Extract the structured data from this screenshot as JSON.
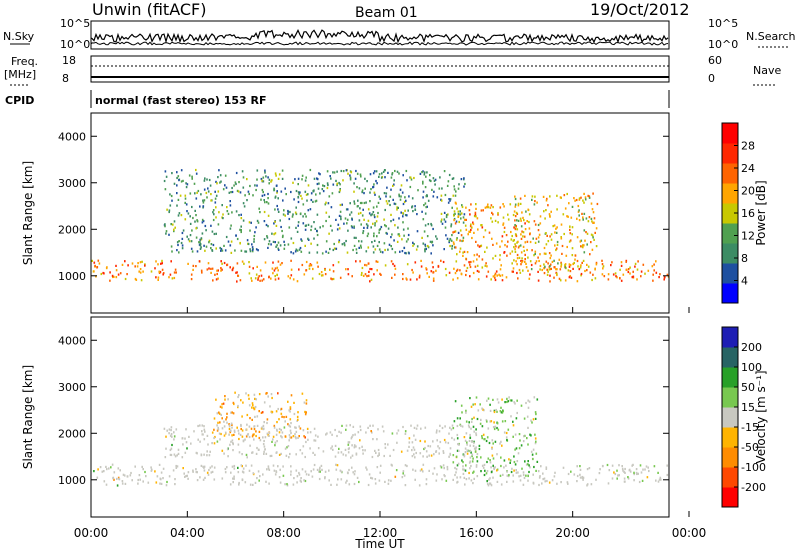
{
  "header": {
    "station": "Unwin (fitACF)",
    "beam": "Beam 01",
    "date": "19/Oct/2012"
  },
  "params": {
    "nsky_label": "N.Sky",
    "nsky_ticks": [
      "10^5",
      "10^0"
    ],
    "nsearch_label": "N.Search",
    "freq_label_1": "Freq.",
    "freq_label_2": "[MHz]",
    "freq_ticks": [
      "18",
      "8"
    ],
    "nave_label": "Nave",
    "nave_ticks": [
      "60",
      "0"
    ],
    "cpid_label": "CPID",
    "cpid_value": "normal (fast stereo) 153 RF"
  },
  "colors": {
    "power_scale": [
      "#0000ff",
      "#1e50a0",
      "#3c8c64",
      "#50a050",
      "#c8c800",
      "#ffa500",
      "#ff6400",
      "#ff2800",
      "#ff0000"
    ],
    "velocity_scale": [
      "#ff0000",
      "#ff4800",
      "#ff8c00",
      "#ffb400",
      "#c8c8c0",
      "#78c850",
      "#28a028",
      "#286464",
      "#1e1eb4"
    ],
    "ground_scatter": "#c8c8c0"
  },
  "chart_data": [
    {
      "type": "heatmap",
      "name": "power-panel",
      "xlabel": "",
      "ylabel": "Slant Range [km]",
      "xlim": [
        0,
        24
      ],
      "ylim": [
        200,
        4500
      ],
      "yticks": [
        "1000",
        "2000",
        "3000",
        "4000"
      ],
      "colorbar": {
        "label": "Power [dB]",
        "ticks": [
          "28",
          "24",
          "20",
          "16",
          "12",
          "8",
          "4"
        ],
        "range": [
          0,
          32
        ]
      },
      "bands": [
        {
          "start": 0.0,
          "end": 24.0,
          "range_start": 900,
          "range_end": 1350,
          "value": 22
        },
        {
          "start": 3.0,
          "end": 15.5,
          "range_start": 1500,
          "range_end": 3300,
          "value": 10
        },
        {
          "start": 15.0,
          "end": 18.0,
          "range_start": 1300,
          "range_end": 2600,
          "value": 20
        },
        {
          "start": 17.5,
          "end": 21.0,
          "range_start": 1100,
          "range_end": 2800,
          "value": 18
        }
      ]
    },
    {
      "type": "heatmap",
      "name": "velocity-panel",
      "xlabel": "Time UT",
      "ylabel": "Slant Range [km]",
      "xlim": [
        0,
        24
      ],
      "ylim": [
        200,
        4500
      ],
      "xticks": [
        "00:00",
        "04:00",
        "08:00",
        "12:00",
        "16:00",
        "20:00",
        "00:00"
      ],
      "yticks": [
        "1000",
        "2000",
        "3000",
        "4000"
      ],
      "colorbar": {
        "label": "Velocity [m s⁻¹]",
        "ticks": [
          "200",
          "100",
          "50",
          "15",
          "-15",
          "-50",
          "-100",
          "-200"
        ],
        "range": [
          -250,
          250
        ]
      },
      "bands": [
        {
          "start": 0.0,
          "end": 24.0,
          "range_start": 900,
          "range_end": 1350,
          "value": 0
        },
        {
          "start": 5.0,
          "end": 9.0,
          "range_start": 1900,
          "range_end": 2900,
          "value": -60
        },
        {
          "start": 15.0,
          "end": 18.5,
          "range_start": 1100,
          "range_end": 2800,
          "value": 40
        },
        {
          "start": 3.0,
          "end": 16.0,
          "range_start": 1500,
          "range_end": 2200,
          "value": 0
        }
      ]
    }
  ]
}
